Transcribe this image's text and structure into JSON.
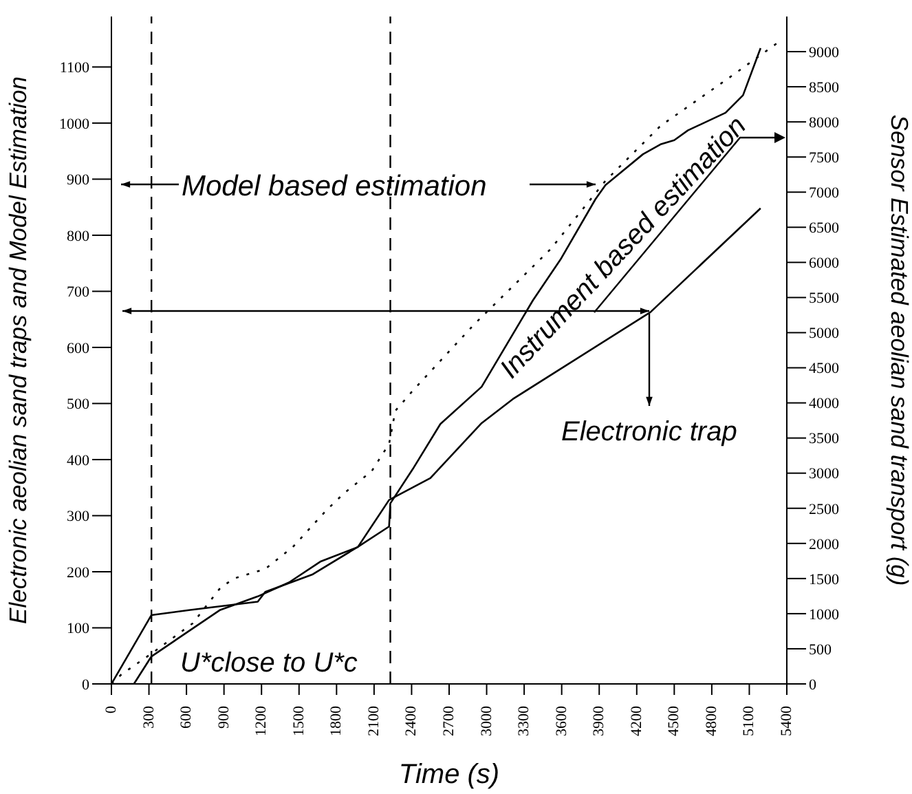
{
  "chart_data": {
    "type": "line",
    "xlabel": "Time (s)",
    "ylabel": "Electronic aeolian sand traps and Model Estimation",
    "y2label": "Sensor Estimated aeolian sand transport (g)",
    "xlim": [
      0,
      5400
    ],
    "xticks": [
      0,
      300,
      600,
      900,
      1200,
      1500,
      1800,
      2100,
      2400,
      2700,
      3000,
      3300,
      3600,
      3900,
      4200,
      4500,
      4800,
      5100,
      5400
    ],
    "ylim": [
      0,
      1190
    ],
    "yticks": [
      0,
      100,
      200,
      300,
      400,
      500,
      600,
      700,
      800,
      900,
      1000,
      1100
    ],
    "y2lim": [
      0,
      9500
    ],
    "y2ticks": [
      0,
      500,
      1000,
      1500,
      2000,
      2500,
      3000,
      3500,
      4000,
      4500,
      5000,
      5500,
      6000,
      6500,
      7000,
      7500,
      8000,
      8500,
      9000
    ],
    "marker": "none",
    "series": [
      {
        "color": "#000000",
        "line_style": "dotted",
        "x": [
          0,
          80,
          320,
          650,
          870,
          980,
          1230,
          1450,
          1720,
          1860,
          2080,
          2220,
          2270,
          2410,
          2900,
          3510,
          3950,
          4390,
          4940,
          5350
        ],
        "values": [
          0,
          17,
          54,
          108,
          171,
          188,
          205,
          244,
          310,
          340,
          379,
          428,
          487,
          523,
          641,
          775,
          897,
          995,
          1081,
          1147
        ]
      },
      {
        "color": "#000000",
        "line_style": "solid",
        "axis": "y2",
        "x": [
          0,
          320,
          620,
          1170,
          1230,
          1610,
          1970,
          2220,
          2230,
          2410,
          2630,
          2960,
          3370,
          3590,
          3870,
          3950,
          4250,
          4390,
          4500,
          4610,
          4910,
          5050,
          5190
        ],
        "values": [
          0,
          980,
          1050,
          1170,
          1310,
          1560,
          1950,
          2240,
          2570,
          3060,
          3700,
          4230,
          5460,
          6040,
          6900,
          7100,
          7540,
          7680,
          7740,
          7880,
          8130,
          8380,
          9050
        ]
      },
      {
        "color": "#000000",
        "line_style": "solid",
        "x": [
          0,
          180,
          320,
          870,
          1170,
          1420,
          1670,
          1970,
          2220,
          2550,
          2960,
          3210,
          4310,
          5190
        ],
        "values": [
          0,
          0,
          49,
          132,
          156,
          181,
          218,
          244,
          328,
          367,
          465,
          508,
          663,
          848
        ]
      }
    ],
    "ref_lines": [
      {
        "axis": "x",
        "value": 320,
        "line_style": "dashed",
        "color": "#000000"
      },
      {
        "axis": "x",
        "value": 2230,
        "line_style": "dashed",
        "color": "#000000"
      }
    ],
    "annotations": [
      "Model based estimation",
      "Instrument based estimation",
      "Electronic trap",
      "U*close to U*c"
    ]
  }
}
